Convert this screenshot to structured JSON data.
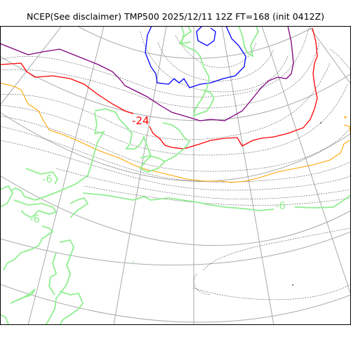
{
  "title": "NCEP(See disclaimer) TMP500 2025/12/11 12Z FT=168 (init 0412Z)",
  "colors": {
    "gridline": "#aaaaaa",
    "contour_thin": "#555555",
    "green": "#90ee90",
    "blue": "#0000ff",
    "purple": "#800080",
    "red": "#ff0000",
    "orange": "#ffa500",
    "frame": "#000000"
  },
  "contour_labels": [
    {
      "text": "-24",
      "color": "red"
    },
    {
      "text": "-6",
      "color": "green"
    },
    {
      "text": "-6",
      "color": "green"
    },
    {
      "text": "-6",
      "color": "green"
    }
  ]
}
